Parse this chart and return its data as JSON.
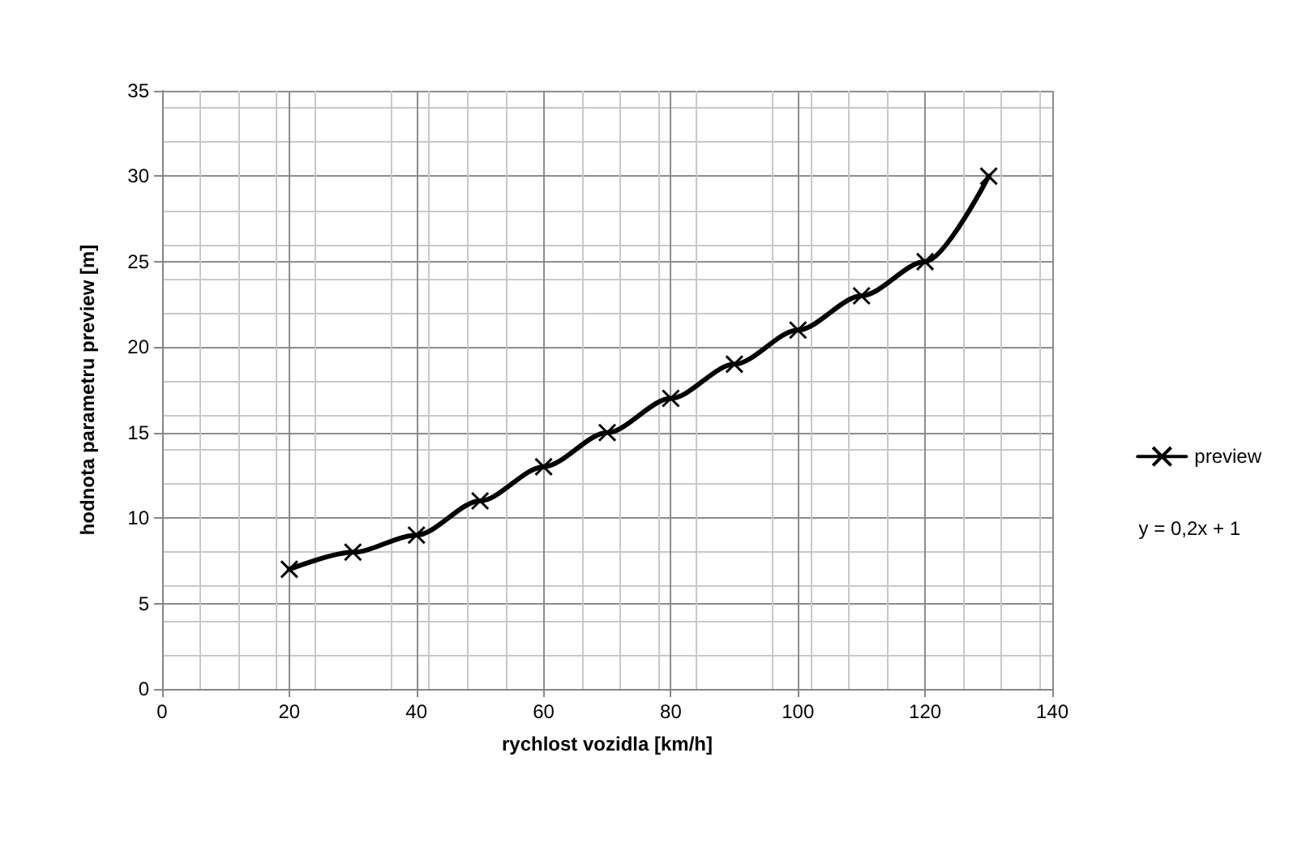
{
  "chart_data": {
    "type": "line",
    "xlabel": "rychlost vozidla [km/h]",
    "ylabel": "hodnota parametru preview [m]",
    "x": [
      20,
      30,
      40,
      50,
      60,
      70,
      80,
      90,
      100,
      110,
      120,
      130
    ],
    "series": [
      {
        "name": "preview",
        "color": "#000000",
        "values": [
          7,
          8,
          9,
          11,
          13,
          15,
          17,
          19,
          21,
          23,
          25,
          30
        ]
      }
    ],
    "xlim": [
      0,
      140
    ],
    "xticks": [
      0,
      20,
      40,
      60,
      80,
      100,
      120,
      140
    ],
    "ylim": [
      0,
      35
    ],
    "yticks": [
      0,
      5,
      10,
      15,
      20,
      25,
      30,
      35
    ],
    "grid": true,
    "legend": "right",
    "marker": "cross",
    "line_style": "solid",
    "annotations": [
      "y = 0,2x + 1"
    ]
  }
}
